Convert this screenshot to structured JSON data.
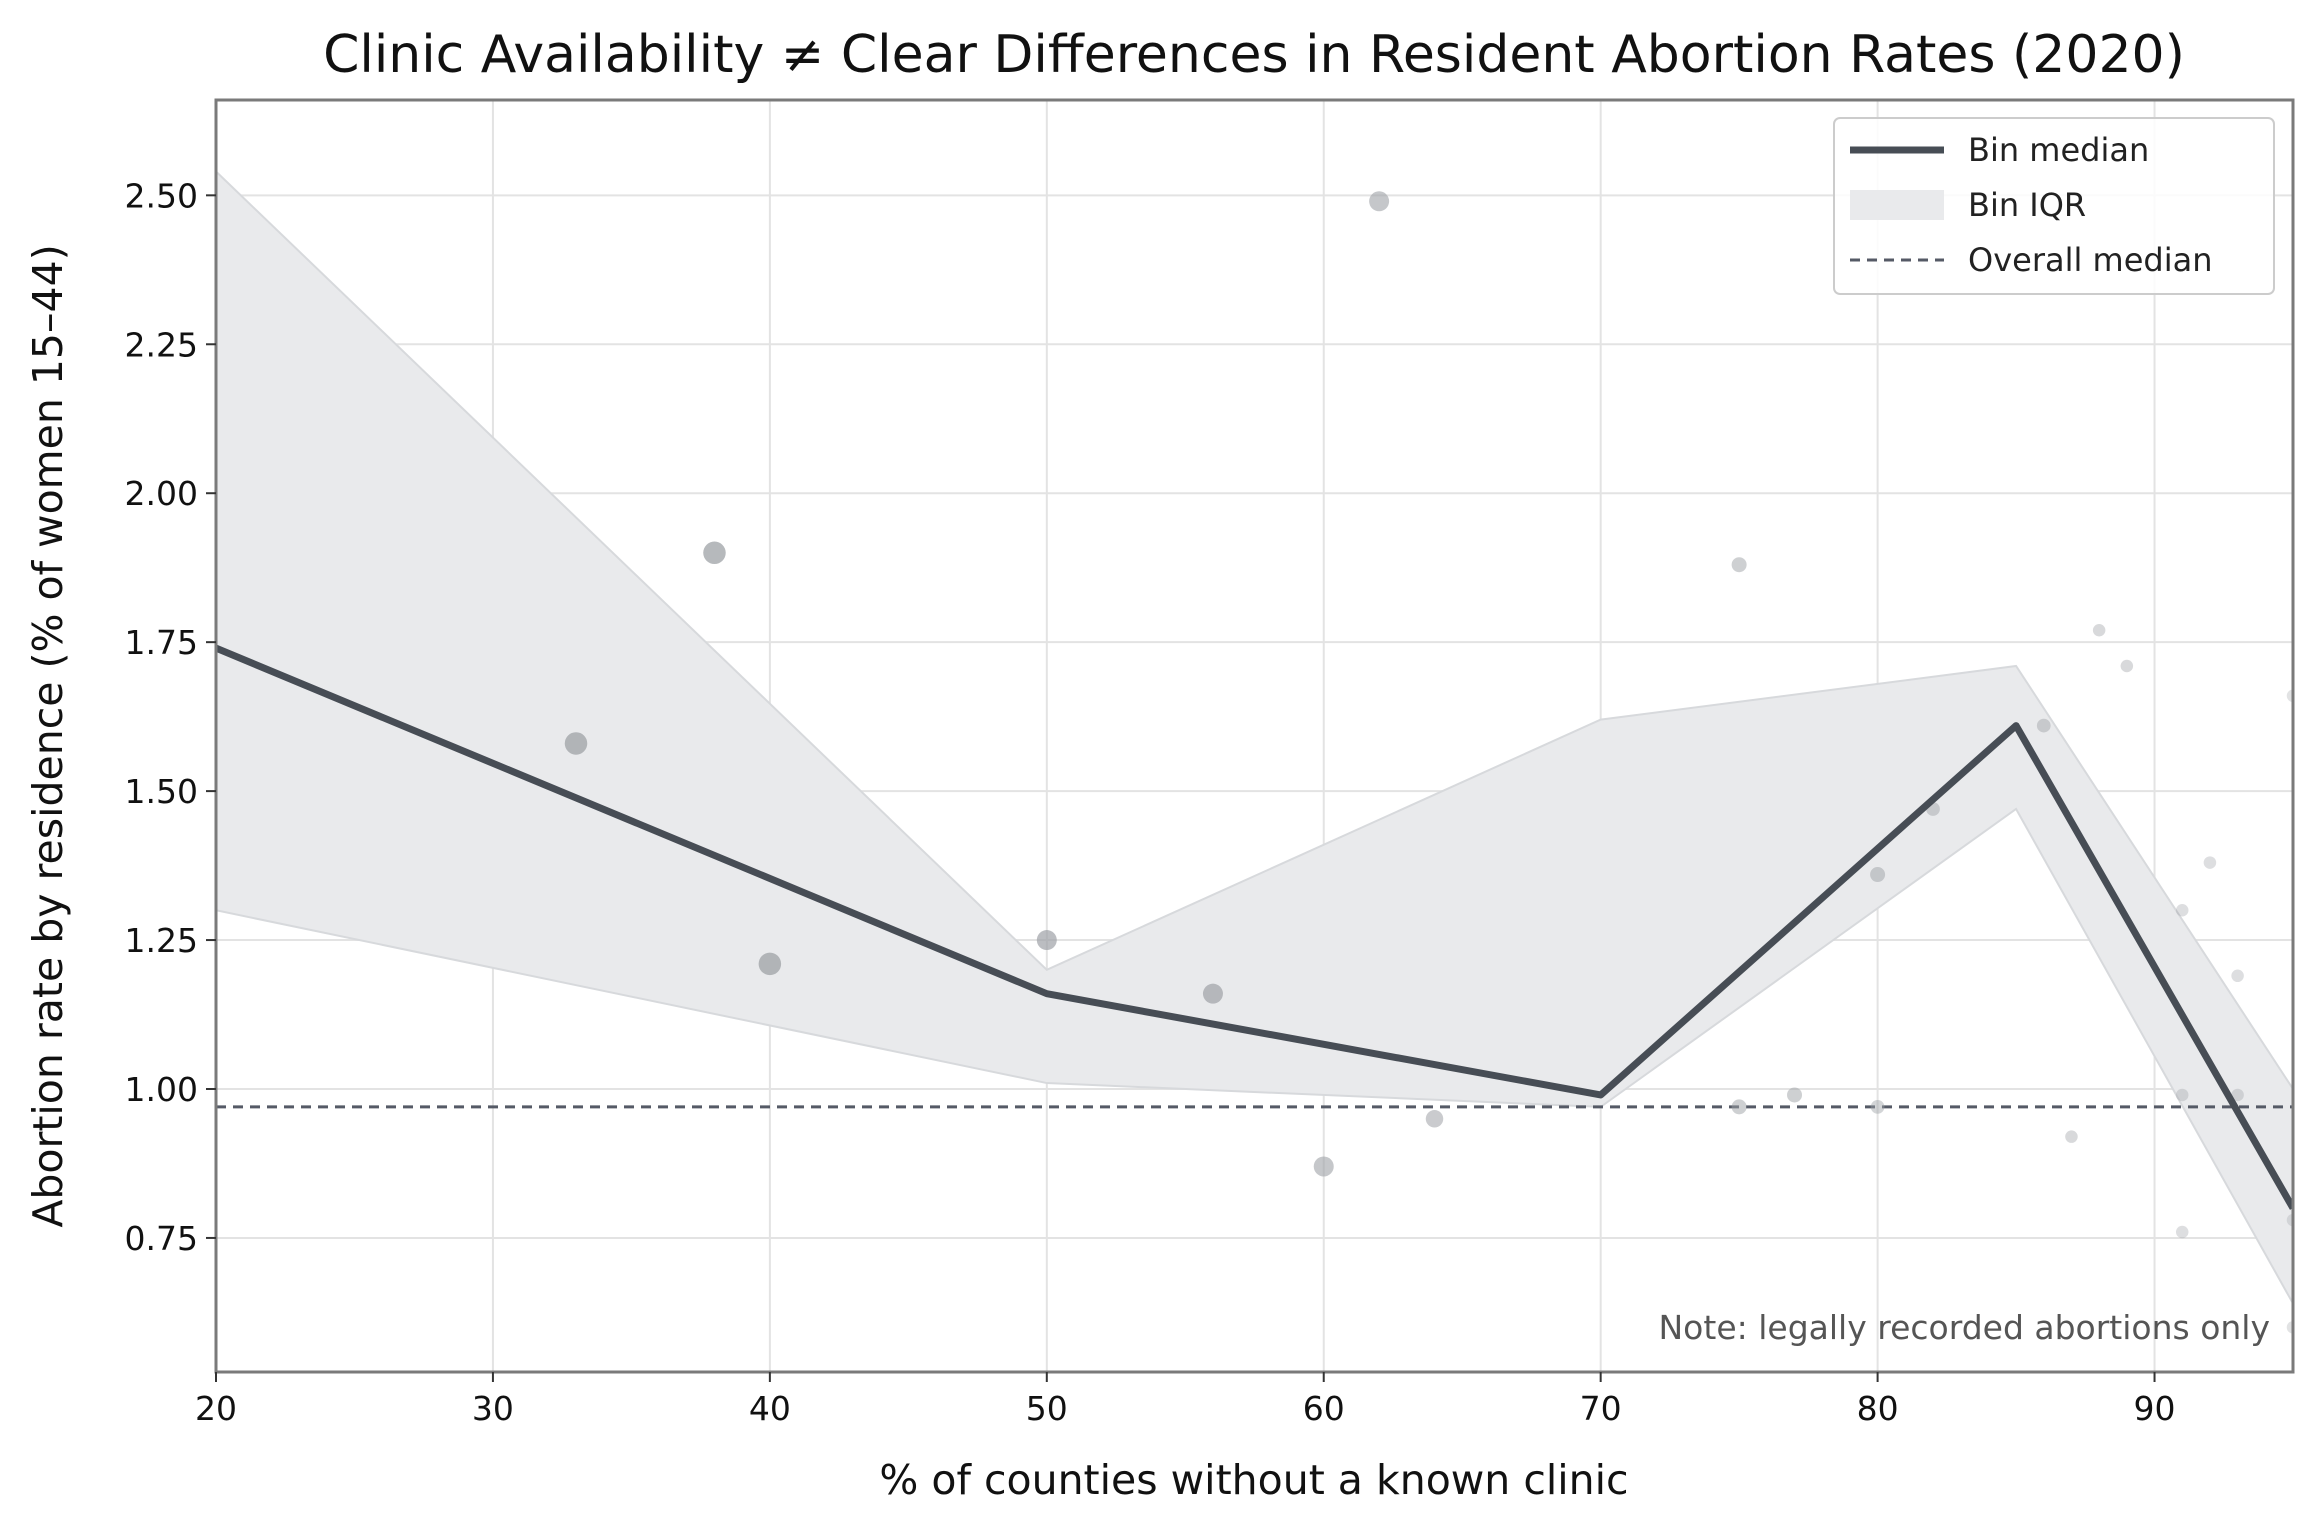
{
  "chart_data": {
    "type": "line",
    "title": "Clinic Availability ≠ Clear Differences in Resident Abortion Rates (2020)",
    "xlabel": "% of counties without a known clinic",
    "ylabel": "Abortion rate by residence (% of women 15–44)",
    "xlim": [
      20,
      95
    ],
    "ylim": [
      0.525,
      2.66
    ],
    "x_ticks": [
      20,
      30,
      40,
      50,
      60,
      70,
      80,
      90
    ],
    "y_ticks": [
      0.75,
      1.0,
      1.25,
      1.5,
      1.75,
      2.0,
      2.25,
      2.5
    ],
    "x_tick_labels": [
      "20",
      "30",
      "40",
      "50",
      "60",
      "70",
      "80",
      "90"
    ],
    "y_tick_labels": [
      "0.75",
      "1.00",
      "1.25",
      "1.50",
      "1.75",
      "2.00",
      "2.25",
      "2.50"
    ],
    "grid": true,
    "legend_position": "top-right",
    "legend": [
      "Bin median",
      "Bin IQR",
      "Overall median"
    ],
    "annotation": "Note: legally recorded abortions only",
    "bin_median": {
      "x": [
        20,
        50,
        70,
        85,
        95
      ],
      "y": [
        1.74,
        1.16,
        0.99,
        1.61,
        0.8
      ]
    },
    "bin_iqr": {
      "x": [
        20,
        50,
        70,
        85,
        95
      ],
      "lower": [
        1.3,
        1.01,
        0.97,
        1.47,
        0.64
      ],
      "upper": [
        2.54,
        1.2,
        1.62,
        1.71,
        1.0
      ]
    },
    "overall_median": 0.97,
    "scatter": [
      {
        "x": 33,
        "y": 1.58,
        "size": 9,
        "opacity": 0.75
      },
      {
        "x": 38,
        "y": 1.9,
        "size": 9,
        "opacity": 0.75
      },
      {
        "x": 40,
        "y": 1.21,
        "size": 9,
        "opacity": 0.75
      },
      {
        "x": 50,
        "y": 1.25,
        "size": 8,
        "opacity": 0.7
      },
      {
        "x": 56,
        "y": 1.16,
        "size": 8,
        "opacity": 0.7
      },
      {
        "x": 60,
        "y": 0.87,
        "size": 8,
        "opacity": 0.6
      },
      {
        "x": 62,
        "y": 2.49,
        "size": 8,
        "opacity": 0.6
      },
      {
        "x": 64,
        "y": 0.95,
        "size": 7,
        "opacity": 0.55
      },
      {
        "x": 75,
        "y": 1.88,
        "size": 6,
        "opacity": 0.5
      },
      {
        "x": 75,
        "y": 0.97,
        "size": 6,
        "opacity": 0.5
      },
      {
        "x": 77,
        "y": 0.99,
        "size": 6,
        "opacity": 0.5
      },
      {
        "x": 80,
        "y": 1.36,
        "size": 6,
        "opacity": 0.5
      },
      {
        "x": 80,
        "y": 0.97,
        "size": 5.5,
        "opacity": 0.45
      },
      {
        "x": 82,
        "y": 1.47,
        "size": 5.5,
        "opacity": 0.45
      },
      {
        "x": 86,
        "y": 1.61,
        "size": 5.5,
        "opacity": 0.45
      },
      {
        "x": 87,
        "y": 0.92,
        "size": 5,
        "opacity": 0.4
      },
      {
        "x": 88,
        "y": 1.77,
        "size": 5,
        "opacity": 0.4
      },
      {
        "x": 89,
        "y": 1.71,
        "size": 5,
        "opacity": 0.4
      },
      {
        "x": 91,
        "y": 1.3,
        "size": 5,
        "opacity": 0.35
      },
      {
        "x": 91,
        "y": 0.99,
        "size": 5,
        "opacity": 0.35
      },
      {
        "x": 91,
        "y": 0.76,
        "size": 5,
        "opacity": 0.35
      },
      {
        "x": 92,
        "y": 1.38,
        "size": 5,
        "opacity": 0.35
      },
      {
        "x": 93,
        "y": 1.19,
        "size": 5,
        "opacity": 0.35
      },
      {
        "x": 93,
        "y": 0.99,
        "size": 5,
        "opacity": 0.35
      },
      {
        "x": 95,
        "y": 1.66,
        "size": 5,
        "opacity": 0.3
      },
      {
        "x": 95,
        "y": 0.78,
        "size": 5,
        "opacity": 0.3
      },
      {
        "x": 95,
        "y": 0.6,
        "size": 5,
        "opacity": 0.3
      }
    ],
    "colors": {
      "median_line": "#474d55",
      "iqr_fill": "#e9eaec",
      "iqr_edge": "#d7d9dc",
      "overall_median": "#555a66",
      "scatter": "#9ea1a6"
    }
  }
}
